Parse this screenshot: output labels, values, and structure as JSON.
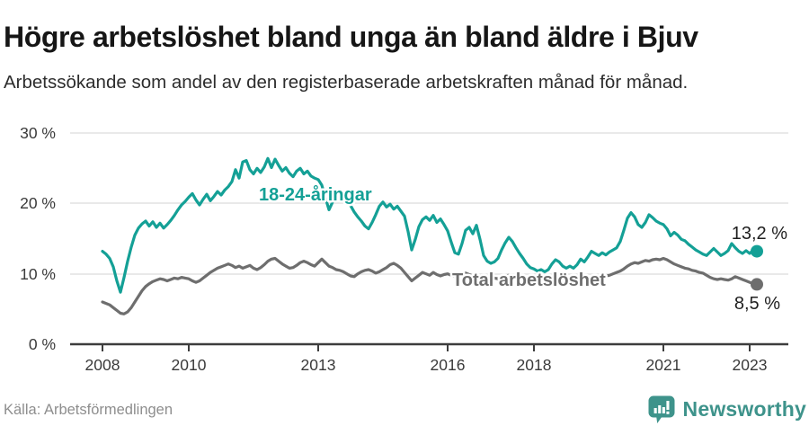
{
  "chart_data": {
    "type": "line",
    "title": "Högre arbetslöshet bland unga än bland äldre i Bjuv",
    "subtitle": "Arbetssökande som andel av den registerbaserade arbetskraften månad för månad.",
    "source": "Källa: Arbetsförmedlingen",
    "x_start_year": 2008,
    "x_interval": "monthly",
    "ylim": [
      0,
      30
    ],
    "grid": "horizontal",
    "legend_position": "inline-labels",
    "yticks": [
      {
        "value": 0,
        "label": "0 %"
      },
      {
        "value": 10,
        "label": "10 %"
      },
      {
        "value": 20,
        "label": "20 %"
      },
      {
        "value": 30,
        "label": "30 %"
      }
    ],
    "xticks": [
      {
        "year": 2008,
        "label": "2008"
      },
      {
        "year": 2010,
        "label": "2010"
      },
      {
        "year": 2013,
        "label": "2013"
      },
      {
        "year": 2016,
        "label": "2016"
      },
      {
        "year": 2018,
        "label": "2018"
      },
      {
        "year": 2021,
        "label": "2021"
      },
      {
        "year": 2023,
        "label": "2023"
      }
    ],
    "series": [
      {
        "name": "18-24-åringar",
        "color": "#14A096",
        "end_value": 13.2,
        "end_label": "13,2 %",
        "values": [
          13.2,
          12.8,
          12.2,
          11.0,
          9.0,
          7.4,
          9.5,
          11.8,
          13.8,
          15.5,
          16.5,
          17.1,
          17.5,
          16.8,
          17.4,
          16.6,
          17.2,
          16.5,
          17.0,
          17.6,
          18.3,
          19.1,
          19.8,
          20.3,
          20.9,
          21.4,
          20.5,
          19.8,
          20.6,
          21.3,
          20.4,
          21.0,
          21.7,
          21.2,
          21.9,
          22.4,
          23.1,
          24.8,
          23.6,
          25.9,
          26.1,
          24.8,
          24.2,
          25.0,
          24.4,
          25.2,
          26.4,
          25.1,
          26.3,
          25.4,
          24.6,
          25.1,
          24.3,
          23.8,
          24.6,
          25.0,
          24.2,
          24.6,
          23.9,
          23.6,
          23.4,
          22.6,
          20.8,
          19.1,
          20.2,
          21.4,
          21.9,
          21.1,
          20.3,
          19.7,
          18.8,
          18.1,
          17.5,
          16.8,
          16.4,
          17.3,
          18.4,
          19.6,
          20.2,
          19.5,
          19.9,
          19.2,
          19.6,
          18.9,
          18.2,
          16.0,
          13.4,
          14.9,
          16.7,
          17.7,
          18.1,
          17.6,
          18.3,
          17.3,
          17.8,
          17.0,
          16.1,
          14.5,
          13.0,
          12.8,
          14.3,
          16.2,
          16.6,
          15.7,
          16.9,
          14.9,
          12.6,
          11.8,
          11.5,
          11.7,
          12.2,
          13.4,
          14.4,
          15.2,
          14.6,
          13.7,
          12.9,
          12.2,
          11.4,
          10.9,
          10.7,
          10.4,
          10.6,
          10.3,
          10.6,
          11.4,
          12.0,
          11.7,
          11.1,
          10.8,
          11.1,
          10.8,
          11.3,
          12.1,
          11.7,
          12.4,
          13.2,
          12.9,
          12.6,
          13.0,
          12.7,
          13.1,
          13.4,
          13.7,
          14.6,
          16.2,
          17.9,
          18.7,
          18.1,
          17.0,
          16.6,
          17.3,
          18.4,
          18.0,
          17.5,
          17.2,
          17.0,
          16.4,
          15.4,
          15.9,
          15.5,
          14.9,
          14.7,
          14.2,
          13.8,
          13.4,
          13.1,
          12.8,
          12.6,
          13.1,
          13.6,
          13.1,
          12.6,
          12.9,
          13.3,
          14.3,
          13.7,
          13.2,
          12.9,
          13.3,
          12.9,
          13.4,
          13.2
        ]
      },
      {
        "name": "Total arbetslöshet",
        "color": "#6E6E6E",
        "end_value": 8.5,
        "end_label": "8,5 %",
        "values": [
          6.0,
          5.8,
          5.6,
          5.2,
          4.8,
          4.4,
          4.3,
          4.6,
          5.2,
          6.0,
          6.8,
          7.6,
          8.2,
          8.6,
          8.9,
          9.1,
          9.3,
          9.2,
          9.0,
          9.2,
          9.4,
          9.3,
          9.5,
          9.4,
          9.3,
          9.0,
          8.8,
          9.0,
          9.4,
          9.8,
          10.2,
          10.5,
          10.8,
          11.0,
          11.2,
          11.4,
          11.2,
          10.9,
          11.1,
          10.8,
          11.0,
          11.2,
          10.8,
          10.6,
          10.9,
          11.3,
          11.8,
          12.1,
          12.2,
          11.8,
          11.4,
          11.1,
          10.8,
          10.9,
          11.2,
          11.6,
          11.8,
          11.6,
          11.3,
          11.1,
          11.6,
          12.1,
          11.6,
          11.1,
          10.9,
          10.6,
          10.5,
          10.3,
          10.0,
          9.7,
          9.6,
          10.0,
          10.3,
          10.5,
          10.6,
          10.4,
          10.1,
          10.3,
          10.6,
          10.9,
          11.3,
          11.5,
          11.2,
          10.8,
          10.2,
          9.6,
          9.0,
          9.4,
          9.8,
          10.2,
          10.0,
          9.8,
          10.2,
          9.9,
          9.7,
          9.9,
          10.0,
          9.8,
          9.6,
          9.7,
          9.9,
          10.1,
          9.9,
          9.7,
          9.8,
          9.6,
          9.4,
          9.5,
          9.6,
          9.4,
          9.3,
          9.5,
          9.7,
          9.8,
          9.6,
          9.4,
          9.3,
          9.2,
          9.1,
          9.0,
          9.0,
          8.9,
          8.8,
          8.9,
          9.0,
          9.2,
          9.3,
          9.1,
          9.0,
          8.9,
          9.0,
          9.1,
          9.2,
          9.3,
          9.4,
          9.3,
          9.4,
          9.6,
          9.7,
          9.6,
          9.7,
          9.8,
          10.0,
          10.2,
          10.4,
          10.7,
          11.1,
          11.4,
          11.6,
          11.5,
          11.7,
          11.9,
          11.8,
          12.0,
          12.1,
          12.0,
          12.2,
          12.0,
          11.7,
          11.4,
          11.2,
          11.0,
          10.8,
          10.7,
          10.5,
          10.4,
          10.2,
          10.1,
          9.8,
          9.5,
          9.3,
          9.2,
          9.3,
          9.2,
          9.1,
          9.3,
          9.6,
          9.4,
          9.2,
          9.0,
          8.8,
          8.6,
          8.5
        ]
      }
    ]
  },
  "footer": {
    "brand": "Newsworthy",
    "brand_color": "#3E938B",
    "brand_icon": "speech-bubble-bar-chart-icon"
  }
}
